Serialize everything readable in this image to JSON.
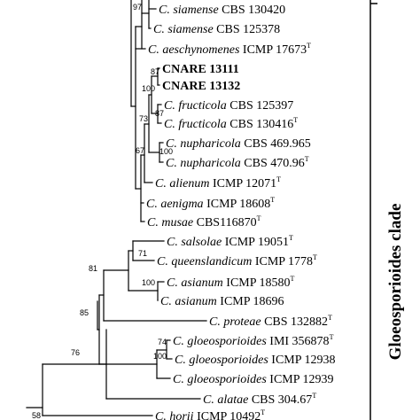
{
  "clade": {
    "label": "Gloeosporioides clade"
  },
  "support_values": [
    "97",
    "87",
    "100",
    "87",
    "73",
    "67",
    "100",
    "71",
    "100",
    "81",
    "85",
    "74",
    "100",
    "76",
    "58"
  ],
  "taxa": [
    {
      "species": "C. siamense",
      "strain": "CBS 130420",
      "type": ""
    },
    {
      "species": "C. siamense",
      "strain": "CBS 125378",
      "type": ""
    },
    {
      "species": "C. aeschynomenes",
      "strain": "ICMP 17673",
      "type": "T"
    },
    {
      "species": "",
      "strain": "CNARE 13111",
      "type": "",
      "bold": true
    },
    {
      "species": "",
      "strain": "CNARE 13132",
      "type": "",
      "bold": true
    },
    {
      "species": "C. fructicola",
      "strain": "CBS 125397",
      "type": ""
    },
    {
      "species": "C. fructicola",
      "strain": "CBS 130416",
      "type": "T"
    },
    {
      "species": "C. nupharicola",
      "strain": "CBS 469.965",
      "type": ""
    },
    {
      "species": "C. nupharicola",
      "strain": "CBS 470.96",
      "type": "T"
    },
    {
      "species": "C. alienum",
      "strain": "ICMP 12071",
      "type": "T"
    },
    {
      "species": "C. aenigma",
      "strain": "ICMP 18608",
      "type": "T"
    },
    {
      "species": "C. musae",
      "strain": "CBS116870",
      "type": "T"
    },
    {
      "species": "C. salsolae",
      "strain": "ICMP 19051",
      "type": "T"
    },
    {
      "species": "C. queenslandicum",
      "strain": "ICMP 1778",
      "type": "T"
    },
    {
      "species": "C. asianum",
      "strain": "ICMP 18580",
      "type": "T"
    },
    {
      "species": "C. asianum",
      "strain": "ICMP 18696",
      "type": ""
    },
    {
      "species": "C. proteae",
      "strain": "CBS 132882",
      "type": "T"
    },
    {
      "species": "C. gloeosporioides",
      "strain": "IMI 356878",
      "type": "T"
    },
    {
      "species": "C. gloeosporioides",
      "strain": "ICMP 12938",
      "type": ""
    },
    {
      "species": "C. gloeosporioides",
      "strain": "ICMP 12939",
      "type": ""
    },
    {
      "species": "C. alatae",
      "strain": "CBS 304.67",
      "type": "T"
    },
    {
      "species": "C. horii",
      "strain": "ICMP 10492",
      "type": "T"
    }
  ]
}
